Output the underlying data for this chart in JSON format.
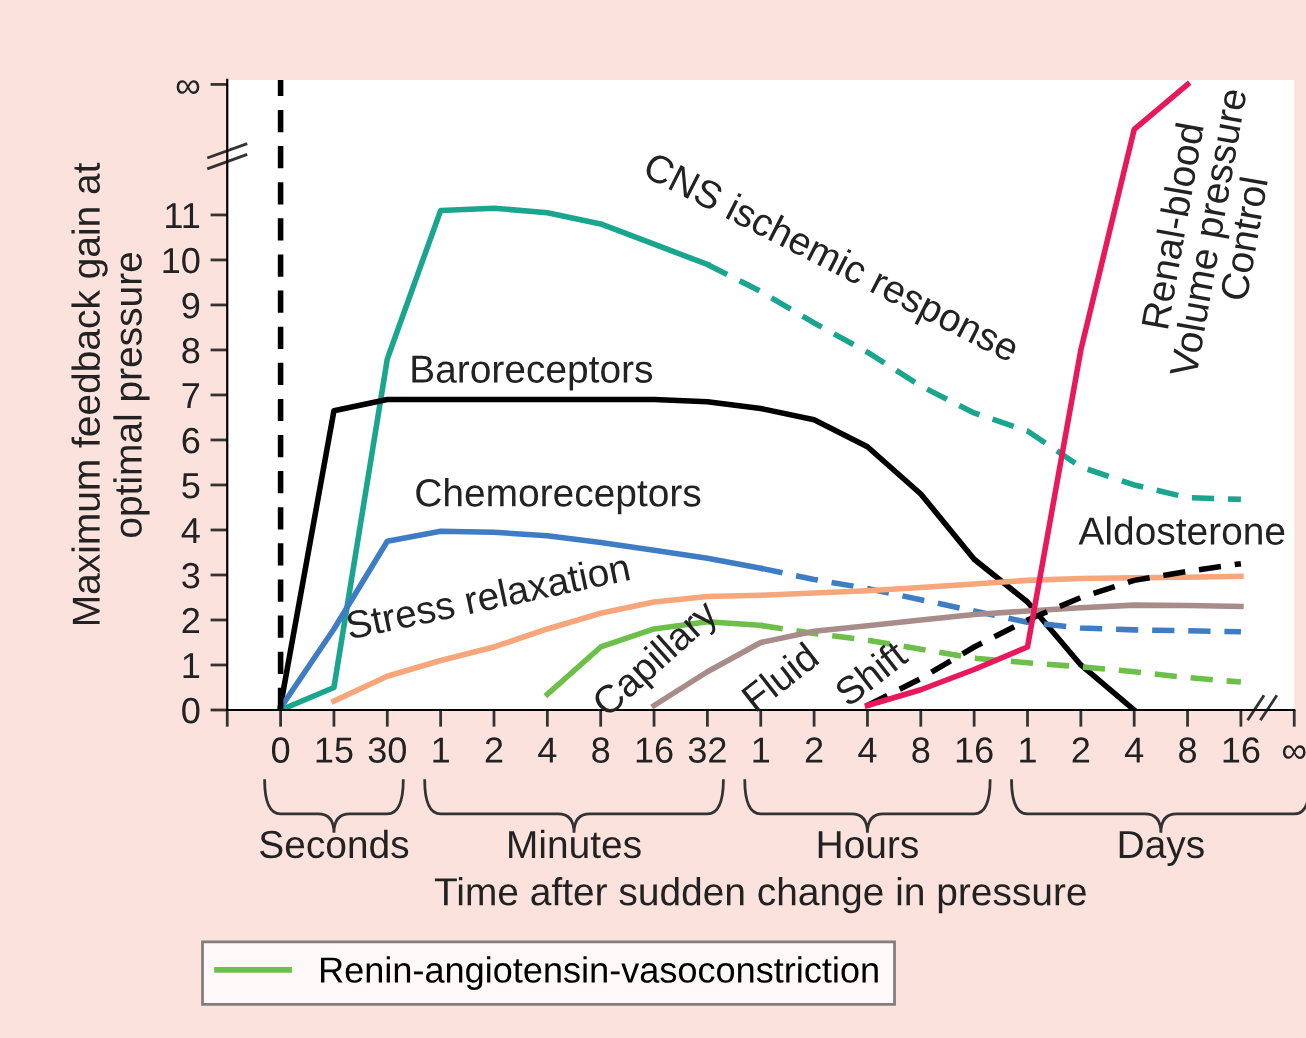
{
  "chart_data": {
    "type": "line",
    "xlabel": "Time after sudden change in pressure",
    "ylabel": "Maximum feedback gain at\noptimal pressure",
    "categories": [
      null,
      "0",
      "15",
      "30",
      "1",
      "2",
      "4",
      "8",
      "16",
      "32",
      "1",
      "2",
      "4",
      "8",
      "16",
      "1",
      "2",
      "4",
      "8",
      "16",
      "∞"
    ],
    "ylim": [
      0,
      14
    ],
    "yticks": [
      0,
      1,
      2,
      3,
      4,
      5,
      6,
      7,
      8,
      9,
      10,
      11,
      {
        "value": 13.9,
        "label": "∞"
      }
    ],
    "grid": false,
    "legend": "bottom",
    "ref_lines": [
      {
        "axis": "x",
        "value": "0",
        "color": "#000000",
        "line_style": "dashed"
      }
    ],
    "series": [
      {
        "color": "#1aa58f",
        "line_style": "solid",
        "values": [
          null,
          0,
          0.5,
          7.8,
          11.1,
          11.15,
          11.05,
          10.8,
          10.35,
          9.9,
          null,
          null,
          null,
          null,
          null,
          null,
          null,
          null,
          null,
          null,
          null
        ]
      },
      {
        "color": "#1aa58f",
        "line_style": "dashed",
        "values": [
          null,
          null,
          null,
          null,
          null,
          null,
          null,
          null,
          null,
          9.9,
          9.3,
          8.6,
          7.95,
          7.2,
          6.6,
          6.2,
          5.4,
          5.0,
          4.72,
          4.68,
          null
        ]
      },
      {
        "color": "#000000",
        "line_style": "solid",
        "values": [
          null,
          0.1,
          6.65,
          6.9,
          6.9,
          6.9,
          6.9,
          6.9,
          6.9,
          6.85,
          6.7,
          6.45,
          5.85,
          4.8,
          3.35,
          2.4,
          1.0,
          0,
          null,
          null,
          null
        ]
      },
      {
        "color": "#3e7cc4",
        "line_style": "solid",
        "values": [
          null,
          0.05,
          1.8,
          3.75,
          3.97,
          3.95,
          3.87,
          3.72,
          3.55,
          3.37,
          3.15,
          null,
          null,
          null,
          null,
          null,
          null,
          null,
          null,
          null,
          null
        ]
      },
      {
        "color": "#3e7cc4",
        "line_style": "dashed",
        "values": [
          null,
          null,
          null,
          null,
          null,
          null,
          null,
          null,
          null,
          null,
          3.15,
          2.9,
          2.7,
          2.45,
          2.2,
          1.95,
          1.82,
          1.78,
          1.76,
          1.74,
          null
        ]
      },
      {
        "color": "#f7a57a",
        "line_style": "solid",
        "values": [
          null,
          null,
          0.2,
          0.75,
          1.1,
          1.4,
          1.8,
          2.15,
          2.4,
          2.52,
          2.55,
          2.6,
          2.65,
          2.72,
          2.8,
          2.88,
          2.92,
          2.94,
          2.95,
          2.97,
          null
        ]
      },
      {
        "name": "Renin-angiotensin-vasoconstriction",
        "color": "#6cc04a",
        "line_style": "solid",
        "values": [
          null,
          null,
          null,
          null,
          null,
          null,
          0.35,
          1.4,
          1.8,
          1.96,
          1.88,
          null,
          null,
          null,
          null,
          null,
          null,
          null,
          null,
          null,
          null
        ]
      },
      {
        "color": "#6cc04a",
        "line_style": "dashed",
        "values": [
          null,
          null,
          null,
          null,
          null,
          null,
          null,
          null,
          null,
          null,
          1.88,
          1.7,
          1.55,
          1.35,
          1.15,
          1.05,
          0.96,
          0.85,
          0.72,
          0.62,
          null
        ]
      },
      {
        "color": "#a88c8a",
        "line_style": "solid",
        "values": [
          null,
          null,
          null,
          null,
          null,
          null,
          null,
          null,
          0.1,
          0.85,
          1.5,
          1.75,
          1.87,
          2.0,
          2.12,
          2.2,
          2.27,
          2.33,
          2.32,
          2.3,
          null
        ]
      },
      {
        "color": "#000000",
        "line_style": "dashed",
        "values": [
          null,
          null,
          null,
          null,
          null,
          null,
          null,
          null,
          null,
          null,
          null,
          null,
          0.1,
          0.7,
          1.4,
          2.0,
          2.5,
          2.88,
          3.08,
          3.25,
          null
        ]
      },
      {
        "color": "#e8185a",
        "line_style": "solid",
        "values": [
          null,
          null,
          null,
          null,
          null,
          null,
          null,
          null,
          null,
          null,
          null,
          null,
          0.1,
          0.45,
          0.9,
          1.4,
          8.0,
          12.9,
          13.9,
          null,
          null
        ]
      }
    ],
    "annotations": [
      "CNS ischemic response",
      "Baroreceptors",
      "Chemoreceptors",
      "Stress relaxation",
      "Capillary",
      "Fluid",
      "Shift",
      "Renal-blood\nVolume pressure\nControl",
      "Aldosterone",
      "Seconds",
      "Minutes",
      "Hours",
      "Days"
    ]
  }
}
